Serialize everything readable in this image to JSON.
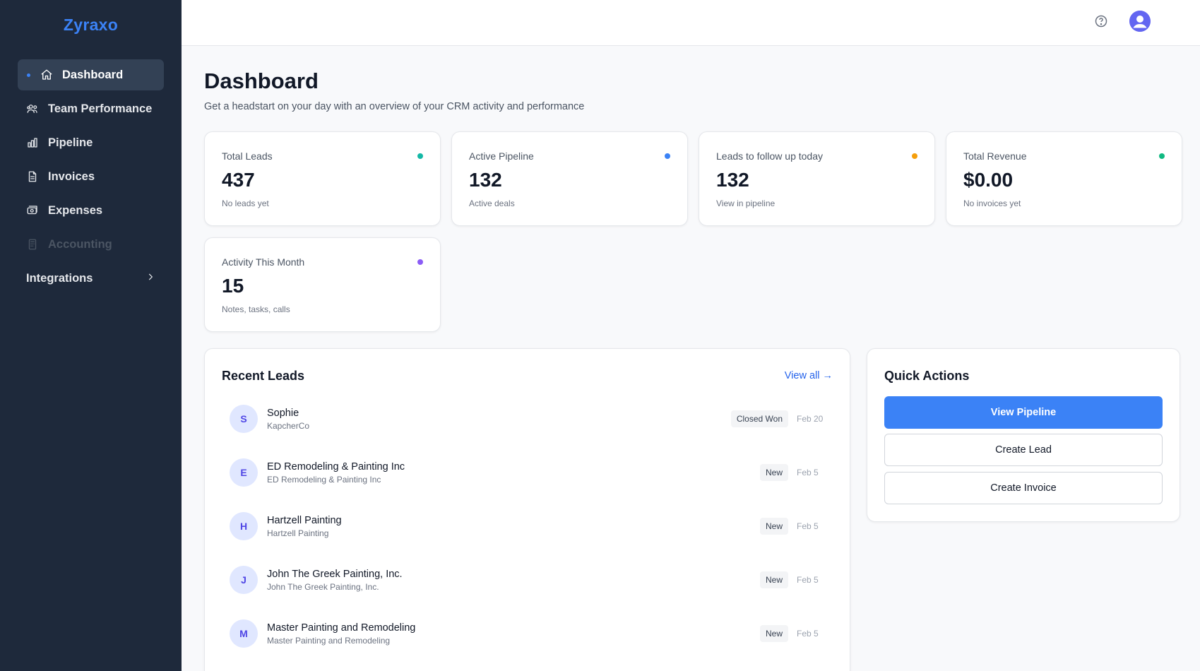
{
  "brand": "Zyraxo",
  "nav": {
    "items": [
      {
        "label": "Dashboard",
        "icon": "home-icon",
        "active": true
      },
      {
        "label": "Team Performance",
        "icon": "users-icon"
      },
      {
        "label": "Pipeline",
        "icon": "bar-chart-icon"
      },
      {
        "label": "Invoices",
        "icon": "file-icon"
      },
      {
        "label": "Expenses",
        "icon": "camera-money-icon"
      },
      {
        "label": "Accounting",
        "icon": "calculator-icon",
        "disabled": true
      }
    ],
    "integrations": "Integrations"
  },
  "header": {
    "help_icon": "help-circle-icon",
    "avatar_icon": "user-avatar-icon"
  },
  "page": {
    "title": "Dashboard",
    "subtitle": "Get a headstart on your day with an overview of your CRM activity and performance"
  },
  "stats": [
    {
      "label": "Total Leads",
      "value": "437",
      "sub": "No leads yet",
      "color": "#14b8a6"
    },
    {
      "label": "Active Pipeline",
      "value": "132",
      "sub": "Active deals",
      "color": "#3b82f6"
    },
    {
      "label": "Leads to follow up today",
      "value": "132",
      "sub": "View in pipeline",
      "color": "#f59e0b"
    },
    {
      "label": "Total Revenue",
      "value": "$0.00",
      "sub": "No invoices yet",
      "color": "#10b981"
    },
    {
      "label": "Activity This Month",
      "value": "15",
      "sub": "Notes, tasks, calls",
      "color": "#8b5cf6"
    }
  ],
  "recent_leads": {
    "title": "Recent Leads",
    "view_all": "View all →",
    "rows": [
      {
        "initial": "S",
        "name": "Sophie",
        "company": "KapcherCo",
        "status": "Closed Won",
        "date": "Feb 20"
      },
      {
        "initial": "E",
        "name": "ED Remodeling & Painting Inc",
        "company": "ED Remodeling & Painting Inc",
        "status": "New",
        "date": "Feb 5"
      },
      {
        "initial": "H",
        "name": "Hartzell Painting",
        "company": "Hartzell Painting",
        "status": "New",
        "date": "Feb 5"
      },
      {
        "initial": "J",
        "name": "John The Greek Painting, Inc.",
        "company": "John The Greek Painting, Inc.",
        "status": "New",
        "date": "Feb 5"
      },
      {
        "initial": "M",
        "name": "Master Painting and Remodeling",
        "company": "Master Painting and Remodeling",
        "status": "New",
        "date": "Feb 5"
      }
    ]
  },
  "quick_actions": {
    "title": "Quick Actions",
    "view_pipeline": "View Pipeline",
    "create_lead": "Create Lead",
    "create_invoice": "Create Invoice"
  }
}
